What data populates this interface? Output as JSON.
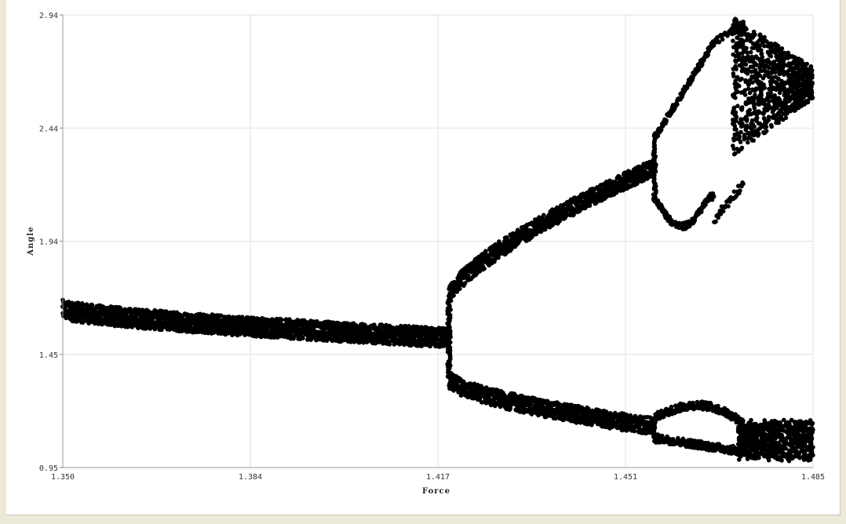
{
  "chart_data": {
    "type": "scatter",
    "title": "",
    "xlabel": "Force",
    "ylabel": "Angle",
    "xlim": [
      1.35,
      1.485
    ],
    "ylim": [
      0.95,
      2.94
    ],
    "x_ticks": [
      "1.350",
      "1.384",
      "1.417",
      "1.451",
      "1.485"
    ],
    "y_ticks": [
      "0.95",
      "1.45",
      "1.94",
      "2.44",
      "2.94"
    ],
    "grid": true,
    "legend": "none",
    "marker_color": "#000000",
    "series": [
      {
        "name": "",
        "description_points": [
          {
            "x": 1.35,
            "y": 1.65
          },
          {
            "x": 1.384,
            "y": 1.57
          },
          {
            "x": 1.417,
            "y": 1.52
          },
          {
            "x": 1.421,
            "y": 1.7
          },
          {
            "x": 1.451,
            "y": 2.27
          },
          {
            "x": 1.421,
            "y": 1.35
          },
          {
            "x": 1.451,
            "y": 1.13
          },
          {
            "x": 1.465,
            "y": 2.02
          },
          {
            "x": 1.475,
            "y": 2.86
          },
          {
            "x": 1.465,
            "y": 1.22
          },
          {
            "x": 1.485,
            "y": 1.05
          }
        ]
      }
    ]
  }
}
